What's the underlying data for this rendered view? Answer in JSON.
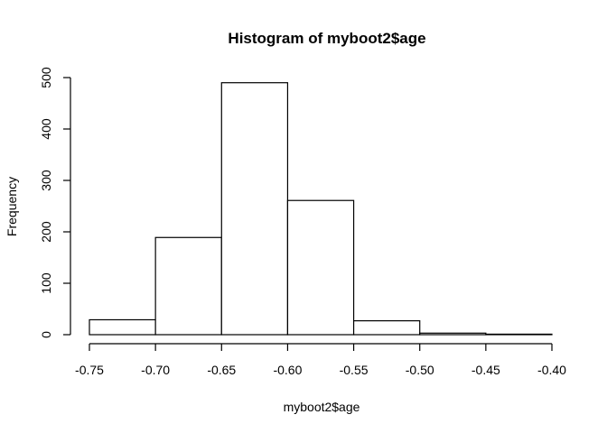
{
  "chart_data": {
    "type": "bar",
    "title": "Histogram of myboot2$age",
    "xlabel": "myboot2$age",
    "ylabel": "Frequency",
    "bins": [
      {
        "x0": -0.75,
        "x1": -0.7,
        "count": 29
      },
      {
        "x0": -0.7,
        "x1": -0.65,
        "count": 189
      },
      {
        "x0": -0.65,
        "x1": -0.6,
        "count": 490
      },
      {
        "x0": -0.6,
        "x1": -0.55,
        "count": 261
      },
      {
        "x0": -0.55,
        "x1": -0.5,
        "count": 27
      },
      {
        "x0": -0.5,
        "x1": -0.45,
        "count": 3
      },
      {
        "x0": -0.45,
        "x1": -0.4,
        "count": 1
      }
    ],
    "xticks": [
      -0.75,
      -0.7,
      -0.65,
      -0.6,
      -0.55,
      -0.5,
      -0.45,
      -0.4
    ],
    "xtick_labels": [
      "-0.75",
      "-0.70",
      "-0.65",
      "-0.60",
      "-0.55",
      "-0.50",
      "-0.45",
      "-0.40"
    ],
    "yticks": [
      0,
      100,
      200,
      300,
      400,
      500
    ],
    "ytick_labels": [
      "0",
      "100",
      "200",
      "300",
      "400",
      "500"
    ],
    "xlim": [
      -0.75,
      -0.4
    ],
    "ylim": [
      0,
      500
    ],
    "grid": false,
    "bar_fill": "#ffffff",
    "bar_stroke": "#000000"
  }
}
